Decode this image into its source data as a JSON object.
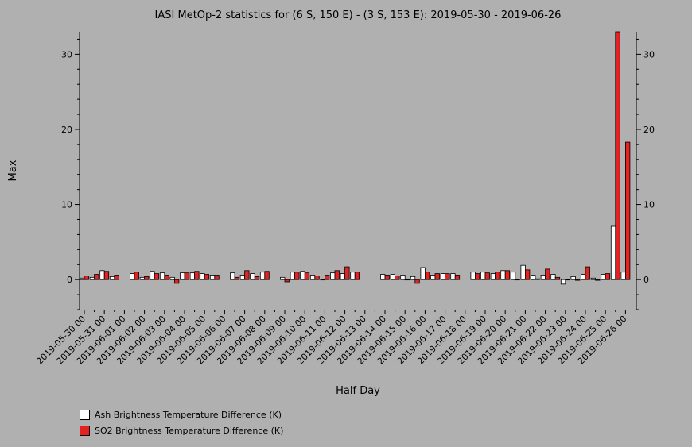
{
  "chart_data": {
    "type": "bar",
    "title": "IASI MetOp-2 statistics for (6 S, 150 E) - (3 S, 153 E): 2019-05-30 - 2019-06-26",
    "xlabel": "Half Day",
    "ylabel": "Max",
    "ylim": [
      -4,
      33
    ],
    "yticks": [
      0,
      10,
      20,
      30
    ],
    "x_tick_labels": [
      "2019-05-30 00",
      "2019-05-31 00",
      "2019-06-01 00",
      "2019-06-02 00",
      "2019-06-03 00",
      "2019-06-04 00",
      "2019-06-05 00",
      "2019-06-06 00",
      "2019-06-07 00",
      "2019-06-08 00",
      "2019-06-09 00",
      "2019-06-10 00",
      "2019-06-11 00",
      "2019-06-12 00",
      "2019-06-13 00",
      "2019-06-14 00",
      "2019-06-15 00",
      "2019-06-16 00",
      "2019-06-17 00",
      "2019-06-18 00",
      "2019-06-19 00",
      "2019-06-20 00",
      "2019-06-21 00",
      "2019-06-22 00",
      "2019-06-23 00",
      "2019-06-24 00",
      "2019-06-25 00",
      "2019-06-26 00"
    ],
    "series": [
      {
        "name": "Ash Brightness Temperature Difference (K)",
        "color": "#ffffff",
        "values": [
          0.2,
          0.3,
          1.2,
          0.4,
          null,
          0.8,
          0.3,
          1.1,
          0.9,
          0.3,
          0.9,
          0.9,
          0.8,
          0.6,
          null,
          0.9,
          0.6,
          0.8,
          1.0,
          null,
          0.3,
          1.0,
          1.1,
          0.6,
          0.0,
          0.9,
          0.8,
          1.0,
          null,
          null,
          0.7,
          0.7,
          0.6,
          0.4,
          1.6,
          0.6,
          0.8,
          0.8,
          null,
          1.0,
          1.0,
          0.8,
          1.2,
          1.0,
          1.9,
          0.6,
          0.6,
          0.7,
          -0.6,
          0.4,
          0.7,
          0.2,
          0.7,
          7.1,
          1.0
        ]
      },
      {
        "name": "SO2 Brightness Temperature Difference (K)",
        "color": "#e52222",
        "values": [
          0.5,
          0.7,
          1.1,
          0.6,
          null,
          1.0,
          0.4,
          0.8,
          0.6,
          -0.5,
          0.9,
          1.1,
          0.7,
          0.6,
          null,
          0.3,
          1.2,
          0.4,
          1.1,
          null,
          -0.3,
          1.0,
          0.9,
          0.5,
          0.6,
          1.2,
          1.7,
          1.0,
          null,
          null,
          0.6,
          0.5,
          0.0,
          -0.5,
          1.0,
          0.8,
          0.8,
          0.6,
          null,
          0.8,
          0.9,
          1.0,
          1.2,
          0.0,
          1.3,
          0.1,
          1.4,
          0.3,
          0.0,
          -0.1,
          1.7,
          -0.1,
          0.8,
          33.0,
          18.3
        ]
      }
    ]
  }
}
